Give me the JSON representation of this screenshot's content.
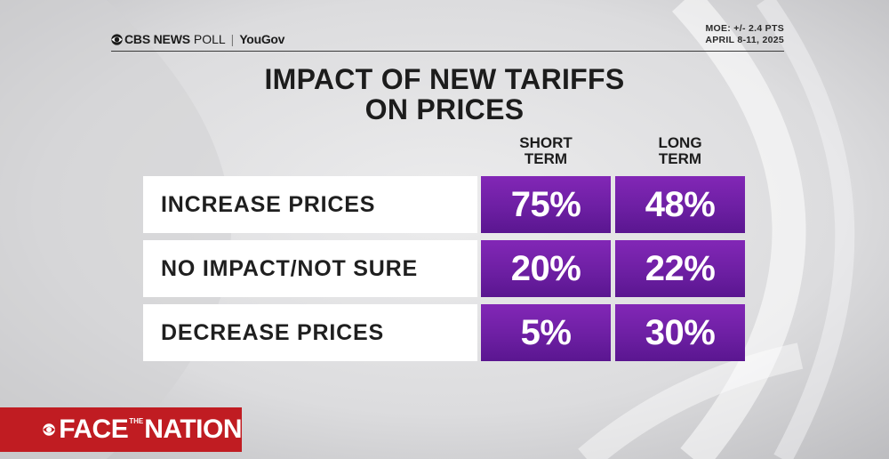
{
  "header": {
    "brand_main": "CBS NEWS",
    "brand_poll": "POLL",
    "brand_sep": "|",
    "brand_partner": "YouGov",
    "moe_line1": "MOE: +/- 2.4 PTS",
    "moe_line2": "APRIL 8-11, 2025"
  },
  "chart_data": {
    "type": "table",
    "title_line1": "IMPACT OF NEW TARIFFS",
    "title_line2": "ON PRICES",
    "columns": [
      {
        "line1": "SHORT",
        "line2": "TERM"
      },
      {
        "line1": "LONG",
        "line2": "TERM"
      }
    ],
    "rows": [
      {
        "label": "INCREASE PRICES",
        "values": [
          "75%",
          "48%"
        ]
      },
      {
        "label": "NO IMPACT/NOT SURE",
        "values": [
          "20%",
          "22%"
        ]
      },
      {
        "label": "DECREASE PRICES",
        "values": [
          "5%",
          "30%"
        ]
      }
    ],
    "cell_color": "#7a24ad"
  },
  "logo": {
    "left": "FACE",
    "middle": "THE",
    "right": "NATION",
    "color": "#c01c22"
  }
}
